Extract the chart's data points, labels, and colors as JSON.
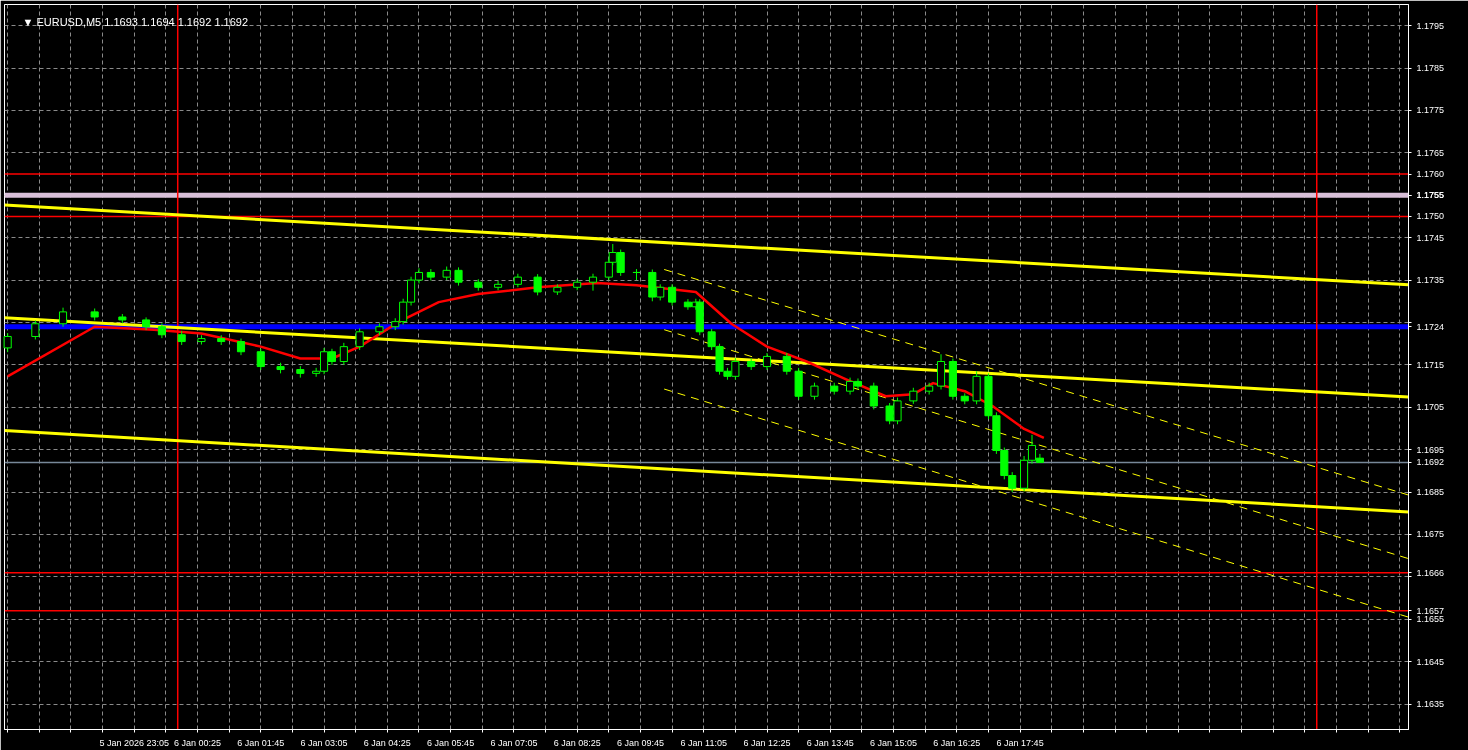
{
  "chart_data": {
    "type": "candlestick",
    "title": "▼ EURUSD,M5  1.1693 1.1694 1.1692 1.1692",
    "color": "#00ff00",
    "x": [
      "2026-01-05T20:25",
      "2026-01-05T21:00",
      "2026-01-05T21:35",
      "2026-01-05T22:15",
      "2026-01-05T22:50",
      "2026-01-05T23:20",
      "2026-01-05T23:40",
      "2026-01-06T00:05",
      "2026-01-06T00:30",
      "2026-01-06T00:55",
      "2026-01-06T01:20",
      "2026-01-06T01:45",
      "2026-01-06T02:10",
      "2026-01-06T02:35",
      "2026-01-06T02:55",
      "2026-01-06T03:05",
      "2026-01-06T03:15",
      "2026-01-06T03:30",
      "2026-01-06T03:50",
      "2026-01-06T04:15",
      "2026-01-06T04:35",
      "2026-01-06T04:45",
      "2026-01-06T04:55",
      "2026-01-06T05:05",
      "2026-01-06T05:20",
      "2026-01-06T05:40",
      "2026-01-06T05:55",
      "2026-01-06T06:20",
      "2026-01-06T06:45",
      "2026-01-06T07:10",
      "2026-01-06T07:35",
      "2026-01-06T08:00",
      "2026-01-06T08:25",
      "2026-01-06T08:45",
      "2026-01-06T09:05",
      "2026-01-06T09:10",
      "2026-01-06T09:20",
      "2026-01-06T09:40",
      "2026-01-06T10:00",
      "2026-01-06T10:10",
      "2026-01-06T10:25",
      "2026-01-06T10:45",
      "2026-01-06T10:55",
      "2026-01-06T11:00",
      "2026-01-06T11:15",
      "2026-01-06T11:25",
      "2026-01-06T11:35",
      "2026-01-06T11:45",
      "2026-01-06T12:05",
      "2026-01-06T12:25",
      "2026-01-06T12:50",
      "2026-01-06T13:05",
      "2026-01-06T13:25",
      "2026-01-06T13:50",
      "2026-01-06T14:10",
      "2026-01-06T14:20",
      "2026-01-06T14:40",
      "2026-01-06T15:00",
      "2026-01-06T15:10",
      "2026-01-06T15:30",
      "2026-01-06T15:50",
      "2026-01-06T16:05",
      "2026-01-06T16:20",
      "2026-01-06T16:35",
      "2026-01-06T16:50",
      "2026-01-06T17:05",
      "2026-01-06T17:15",
      "2026-01-06T17:25",
      "2026-01-06T17:35",
      "2026-01-06T17:50",
      "2026-01-06T18:00",
      "2026-01-06T18:10"
    ],
    "ohlc": [
      [
        1.1719,
        1.17225,
        1.1718,
        1.17217
      ],
      [
        1.17217,
        1.17255,
        1.1721,
        1.17247
      ],
      [
        1.17247,
        1.17285,
        1.1724,
        1.17275
      ],
      [
        1.17275,
        1.17283,
        1.17255,
        1.17263
      ],
      [
        1.17263,
        1.1727,
        1.17248,
        1.17256
      ],
      [
        1.17256,
        1.17262,
        1.17232,
        1.1724
      ],
      [
        1.1724,
        1.17248,
        1.17213,
        1.17221
      ],
      [
        1.17221,
        1.1723,
        1.17197,
        1.17205
      ],
      [
        1.17205,
        1.1722,
        1.17198,
        1.17212
      ],
      [
        1.17212,
        1.1722,
        1.17197,
        1.17205
      ],
      [
        1.17205,
        1.17212,
        1.17173,
        1.17181
      ],
      [
        1.17181,
        1.17188,
        1.17138,
        1.17146
      ],
      [
        1.17146,
        1.17155,
        1.1713,
        1.17139
      ],
      [
        1.17139,
        1.17147,
        1.1712,
        1.1713
      ],
      [
        1.1713,
        1.17143,
        1.17122,
        1.17135
      ],
      [
        1.17135,
        1.1719,
        1.17128,
        1.17181
      ],
      [
        1.17181,
        1.17188,
        1.1715,
        1.17158
      ],
      [
        1.17158,
        1.17202,
        1.1715,
        1.17193
      ],
      [
        1.17193,
        1.17236,
        1.17185,
        1.17228
      ],
      [
        1.17228,
        1.17248,
        1.1722,
        1.1724
      ],
      [
        1.1724,
        1.1726,
        1.17232,
        1.17252
      ],
      [
        1.17252,
        1.17306,
        1.17245,
        1.17298
      ],
      [
        1.17298,
        1.17358,
        1.1729,
        1.1735
      ],
      [
        1.1735,
        1.17378,
        1.17342,
        1.17368
      ],
      [
        1.17368,
        1.17376,
        1.17349,
        1.17357
      ],
      [
        1.17357,
        1.17382,
        1.1735,
        1.17373
      ],
      [
        1.17373,
        1.1738,
        1.17337,
        1.17345
      ],
      [
        1.17345,
        1.17352,
        1.17325,
        1.17333
      ],
      [
        1.17333,
        1.17348,
        1.17326,
        1.1734
      ],
      [
        1.1734,
        1.17365,
        1.17333,
        1.17357
      ],
      [
        1.17357,
        1.17364,
        1.17314,
        1.17322
      ],
      [
        1.17322,
        1.1734,
        1.17315,
        1.17333
      ],
      [
        1.17333,
        1.17352,
        1.17326,
        1.17345
      ],
      [
        1.17345,
        1.17365,
        1.17325,
        1.17357
      ],
      [
        1.17357,
        1.174,
        1.1735,
        1.17392
      ],
      [
        1.17392,
        1.17435,
        1.17385,
        1.17415
      ],
      [
        1.17415,
        1.17422,
        1.1736,
        1.17368
      ],
      [
        1.17368,
        1.17376,
        1.1735,
        1.17368
      ],
      [
        1.17368,
        1.17375,
        1.173,
        1.1731
      ],
      [
        1.1731,
        1.1734,
        1.17302,
        1.17333
      ],
      [
        1.17333,
        1.1734,
        1.1729,
        1.17298
      ],
      [
        1.17298,
        1.17305,
        1.1728,
        1.17287
      ],
      [
        1.17287,
        1.17306,
        1.1728,
        1.17298
      ],
      [
        1.17298,
        1.17305,
        1.1722,
        1.17228
      ],
      [
        1.17228,
        1.17235,
        1.17185,
        1.17193
      ],
      [
        1.17193,
        1.172,
        1.17127,
        1.17135
      ],
      [
        1.17135,
        1.17143,
        1.17115,
        1.17123
      ],
      [
        1.17123,
        1.17166,
        1.17115,
        1.17158
      ],
      [
        1.17158,
        1.17165,
        1.17138,
        1.17146
      ],
      [
        1.17146,
        1.17178,
        1.17138,
        1.1717
      ],
      [
        1.1717,
        1.17178,
        1.17127,
        1.17135
      ],
      [
        1.17135,
        1.17143,
        1.17068,
        1.17076
      ],
      [
        1.17076,
        1.17108,
        1.17068,
        1.171
      ],
      [
        1.171,
        1.17108,
        1.1708,
        1.17088
      ],
      [
        1.17088,
        1.1712,
        1.1708,
        1.17111
      ],
      [
        1.17111,
        1.17118,
        1.17092,
        1.171
      ],
      [
        1.171,
        1.17108,
        1.17045,
        1.17053
      ],
      [
        1.17053,
        1.1706,
        1.1701,
        1.17018
      ],
      [
        1.17018,
        1.17073,
        1.1701,
        1.17065
      ],
      [
        1.17065,
        1.17096,
        1.17058,
        1.17088
      ],
      [
        1.17088,
        1.17108,
        1.1708,
        1.171
      ],
      [
        1.171,
        1.17175,
        1.17092,
        1.17158
      ],
      [
        1.17158,
        1.17165,
        1.17068,
        1.17076
      ],
      [
        1.17076,
        1.17083,
        1.17057,
        1.17065
      ],
      [
        1.17065,
        1.17135,
        1.17057,
        1.17123
      ],
      [
        1.17123,
        1.1713,
        1.17022,
        1.1703
      ],
      [
        1.1703,
        1.17038,
        1.1694,
        1.16948
      ],
      [
        1.16948,
        1.16955,
        1.1688,
        1.16889
      ],
      [
        1.16889,
        1.16897,
        1.1685,
        1.16859
      ],
      [
        1.16859,
        1.16935,
        1.16852,
        1.16925
      ],
      [
        1.16925,
        1.16985,
        1.16917,
        1.1696
      ],
      [
        1.1693,
        1.1694,
        1.1692,
        1.1692
      ]
    ],
    "series": [
      {
        "type": "line",
        "color": "#ffff00",
        "line_style": "solid",
        "x": [
          "2026-01-05T20:21",
          "2026-01-07T01:56"
        ],
        "values": [
          1.17527,
          1.17339
        ]
      },
      {
        "type": "line",
        "color": "#ffff00",
        "line_style": "solid",
        "x": [
          "2026-01-05T20:21",
          "2026-01-07T01:56"
        ],
        "values": [
          1.17261,
          1.17074
        ]
      },
      {
        "type": "line",
        "color": "#ffff00",
        "line_style": "solid",
        "x": [
          "2026-01-05T20:21",
          "2026-01-07T01:56"
        ],
        "values": [
          1.16995,
          1.16803
        ]
      },
      {
        "type": "line",
        "color": "#ffff00",
        "line_style": "dashed",
        "x": [
          "2026-01-06T10:15",
          "2026-01-07T01:56"
        ],
        "values": [
          1.17375,
          1.16843
        ]
      },
      {
        "type": "line",
        "color": "#ffff00",
        "line_style": "dashed",
        "x": [
          "2026-01-06T10:15",
          "2026-01-07T01:56"
        ],
        "values": [
          1.17233,
          1.16693
        ]
      },
      {
        "type": "line",
        "color": "#ffff00",
        "line_style": "dashed",
        "x": [
          "2026-01-06T10:15",
          "2026-01-07T01:56"
        ],
        "values": [
          1.17093,
          1.16555
        ]
      },
      {
        "type": "line",
        "color": "#ff0000",
        "line_style": "solid",
        "x": [
          "2026-01-05T20:25",
          "2026-01-05T22:15",
          "2026-01-05T23:30",
          "2026-01-06T00:30",
          "2026-01-06T01:45",
          "2026-01-06T02:35",
          "2026-01-06T03:15",
          "2026-01-06T03:50",
          "2026-01-06T04:40",
          "2026-01-06T05:30",
          "2026-01-06T06:20",
          "2026-01-06T07:35",
          "2026-01-06T08:50",
          "2026-01-06T09:40",
          "2026-01-06T10:55",
          "2026-01-06T11:40",
          "2026-01-06T12:25",
          "2026-01-06T13:15",
          "2026-01-06T14:05",
          "2026-01-06T14:55",
          "2026-01-06T15:30",
          "2026-01-06T15:55",
          "2026-01-06T16:35",
          "2026-01-06T17:10",
          "2026-01-06T17:50",
          "2026-01-06T18:15"
        ],
        "values": [
          1.17123,
          1.1724,
          1.17233,
          1.17224,
          1.17193,
          1.17165,
          1.17165,
          1.17193,
          1.17252,
          1.17298,
          1.17317,
          1.17333,
          1.17343,
          1.17338,
          1.17322,
          1.17247,
          1.17193,
          1.17158,
          1.17116,
          1.17076,
          1.17081,
          1.17107,
          1.17088,
          1.17053,
          1.16999,
          1.16978
        ]
      }
    ],
    "ref_lines": [
      {
        "axis": "y",
        "value": 1.176,
        "label": "1.1760",
        "color": "#ff0000"
      },
      {
        "axis": "y",
        "value": 1.1755,
        "label": "1.1755",
        "color": "#d8bfd8"
      },
      {
        "axis": "y",
        "value": 1.175,
        "label": "1.1750",
        "color": "#ff0000"
      },
      {
        "axis": "y",
        "value": 1.1724,
        "label": "1.1724",
        "color": "#0000ff"
      },
      {
        "axis": "y",
        "value": 1.1692,
        "label": "1.1692",
        "color": "#778899"
      },
      {
        "axis": "y",
        "value": 1.1666,
        "label": "1.1666",
        "color": "#ff0000"
      },
      {
        "axis": "y",
        "value": 1.1657,
        "label": "1.1657",
        "color": "#ff0000"
      },
      {
        "axis": "x",
        "value": "2026-01-06T00:00",
        "color": "#ff0000"
      },
      {
        "axis": "x",
        "value": "2026-01-07T00:00",
        "color": "#ff0000"
      }
    ],
    "xlim": [
      "2026-01-05T20:21",
      "2026-01-07T01:56"
    ],
    "ylim": [
      1.1629,
      1.18
    ],
    "xticks": [
      {
        "value": "2026-01-05T20:25",
        "label": null
      },
      {
        "value": "2026-01-05T21:05",
        "label": null
      },
      {
        "value": "2026-01-05T21:45",
        "label": null
      },
      {
        "value": "2026-01-05T22:25",
        "label": null
      },
      {
        "value": "2026-01-05T23:05",
        "label": "5 Jan 2026 23:05"
      },
      {
        "value": "2026-01-05T23:45",
        "label": null
      },
      {
        "value": "2026-01-06T00:25",
        "label": "6 Jan 00:25"
      },
      {
        "value": "2026-01-06T01:05",
        "label": null
      },
      {
        "value": "2026-01-06T01:45",
        "label": "6 Jan 01:45"
      },
      {
        "value": "2026-01-06T02:25",
        "label": null
      },
      {
        "value": "2026-01-06T03:05",
        "label": "6 Jan 03:05"
      },
      {
        "value": "2026-01-06T03:45",
        "label": null
      },
      {
        "value": "2026-01-06T04:25",
        "label": "6 Jan 04:25"
      },
      {
        "value": "2026-01-06T05:05",
        "label": null
      },
      {
        "value": "2026-01-06T05:45",
        "label": "6 Jan 05:45"
      },
      {
        "value": "2026-01-06T06:25",
        "label": null
      },
      {
        "value": "2026-01-06T07:05",
        "label": "6 Jan 07:05"
      },
      {
        "value": "2026-01-06T07:45",
        "label": null
      },
      {
        "value": "2026-01-06T08:25",
        "label": "6 Jan 08:25"
      },
      {
        "value": "2026-01-06T09:05",
        "label": null
      },
      {
        "value": "2026-01-06T09:45",
        "label": "6 Jan 09:45"
      },
      {
        "value": "2026-01-06T10:25",
        "label": null
      },
      {
        "value": "2026-01-06T11:05",
        "label": "6 Jan 11:05"
      },
      {
        "value": "2026-01-06T11:45",
        "label": null
      },
      {
        "value": "2026-01-06T12:25",
        "label": "6 Jan 12:25"
      },
      {
        "value": "2026-01-06T13:05",
        "label": null
      },
      {
        "value": "2026-01-06T13:45",
        "label": "6 Jan 13:45"
      },
      {
        "value": "2026-01-06T14:25",
        "label": null
      },
      {
        "value": "2026-01-06T15:05",
        "label": "6 Jan 15:05"
      },
      {
        "value": "2026-01-06T15:45",
        "label": null
      },
      {
        "value": "2026-01-06T16:25",
        "label": "6 Jan 16:25"
      },
      {
        "value": "2026-01-06T17:05",
        "label": null
      },
      {
        "value": "2026-01-06T17:45",
        "label": "6 Jan 17:45"
      },
      {
        "value": "2026-01-06T18:25",
        "label": null
      },
      {
        "value": "2026-01-06T19:05",
        "label": null
      },
      {
        "value": "2026-01-06T19:45",
        "label": null
      },
      {
        "value": "2026-01-06T20:25",
        "label": null
      },
      {
        "value": "2026-01-06T21:05",
        "label": null
      },
      {
        "value": "2026-01-06T21:45",
        "label": null
      },
      {
        "value": "2026-01-06T22:25",
        "label": null
      },
      {
        "value": "2026-01-06T23:05",
        "label": null
      },
      {
        "value": "2026-01-06T23:45",
        "label": null
      },
      {
        "value": "2026-01-07T00:25",
        "label": null
      },
      {
        "value": "2026-01-07T01:05",
        "label": null
      },
      {
        "value": "2026-01-07T01:45",
        "label": null
      }
    ],
    "yticks": [
      "1.1635",
      "1.1645",
      "1.1655",
      {
        "value": 1.1665,
        "label": null
      },
      "1.1675",
      "1.1685",
      "1.1695",
      "1.1705",
      "1.1715",
      {
        "value": 1.1725,
        "label": null
      },
      "1.1735",
      "1.1745",
      {
        "value": 1.1755,
        "label": null
      },
      "1.1765",
      "1.1775",
      "1.1785",
      "1.1795"
    ],
    "grid": true
  }
}
